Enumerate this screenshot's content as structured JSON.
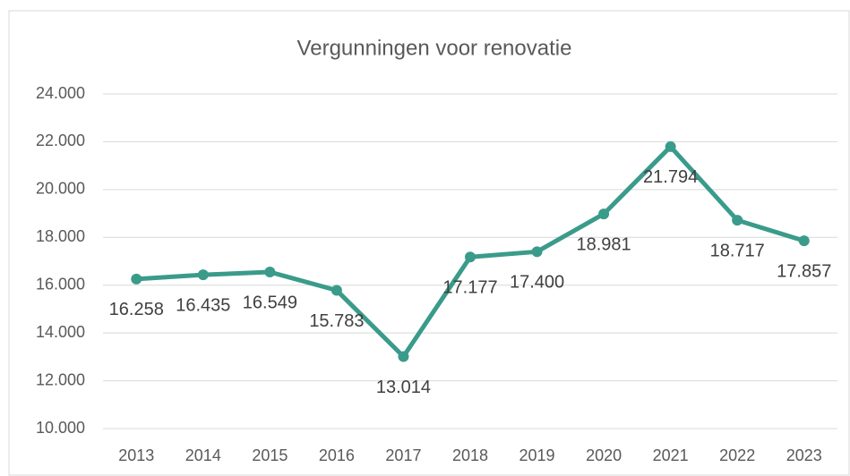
{
  "chart_data": {
    "type": "line",
    "title": "Vergunningen voor renovatie",
    "categories": [
      "2013",
      "2014",
      "2015",
      "2016",
      "2017",
      "2018",
      "2019",
      "2020",
      "2021",
      "2022",
      "2023"
    ],
    "series": [
      {
        "name": "Vergunningen voor renovatie",
        "color": "#3a9b8b",
        "values": [
          16258,
          16435,
          16549,
          15783,
          13014,
          17177,
          17400,
          18981,
          21794,
          18717,
          17857
        ],
        "value_labels": [
          "16.258",
          "16.435",
          "16.549",
          "15.783",
          "13.014",
          "17.177",
          "17.400",
          "18.981",
          "21.794",
          "18.717",
          "17.857"
        ]
      }
    ],
    "ylim": [
      10000,
      24000
    ],
    "yticks": [
      {
        "value": 10000,
        "label": "10.000"
      },
      {
        "value": 12000,
        "label": "12.000"
      },
      {
        "value": 14000,
        "label": "14.000"
      },
      {
        "value": 16000,
        "label": "16.000"
      },
      {
        "value": 18000,
        "label": "18.000"
      },
      {
        "value": 20000,
        "label": "20.000"
      },
      {
        "value": 22000,
        "label": "22.000"
      },
      {
        "value": 24000,
        "label": "24.000"
      }
    ],
    "grid": true
  }
}
